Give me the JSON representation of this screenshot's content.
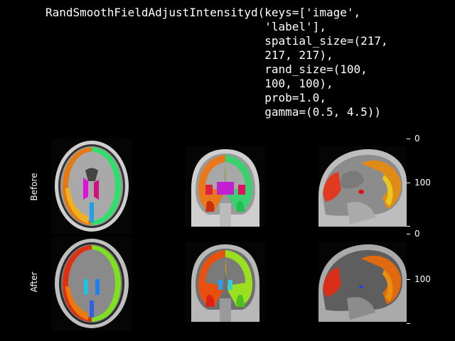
{
  "figure": {
    "title": "RandSmoothFieldAdjustIntensityd(keys=['image',\n                                'label'],\n                                spatial_size=(217,\n                                217, 217),\n                                rand_size=(100,\n                                100, 100),\n                                prob=1.0,\n                                gamma=(0.5, 4.5))",
    "rows": [
      {
        "label": "Before"
      },
      {
        "label": "After"
      }
    ],
    "colorbar_ticks": [
      {
        "label": "0"
      },
      {
        "label": "100"
      },
      {
        "label": ""
      }
    ]
  },
  "colors": {
    "background": "#000000",
    "text": "#ffffff",
    "brain": "#a8a8a8",
    "skull": "#d9d9d9"
  }
}
